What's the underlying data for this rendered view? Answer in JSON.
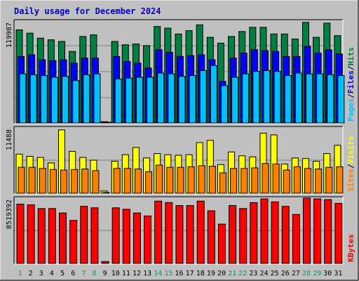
{
  "chart_data": {
    "type": "bar",
    "title": "Daily usage for December 2024",
    "colors": {
      "background": "#c0c0c0",
      "title": "#0000cc",
      "hits": "#008040",
      "files": "#0000ff",
      "pages": "#00c0ff",
      "visits": "#ffff00",
      "sites": "#ff8000",
      "kbytes": "#ff0000",
      "weekend_label": "#00a060",
      "weekday_label": "#000000"
    },
    "categories": [
      "1",
      "2",
      "3",
      "4",
      "5",
      "6",
      "7",
      "8",
      "9",
      "10",
      "11",
      "12",
      "13",
      "14",
      "15",
      "16",
      "17",
      "18",
      "19",
      "20",
      "21",
      "22",
      "23",
      "24",
      "25",
      "26",
      "27",
      "28",
      "29",
      "30",
      "31"
    ],
    "weekend_days": [
      "1",
      "7",
      "8",
      "14",
      "15",
      "21",
      "22",
      "28",
      "29"
    ],
    "panels": [
      {
        "id": "hits-files-pages",
        "max_label": "119987",
        "ylim": [
          0,
          119987
        ],
        "legend": [
          {
            "text": "Pages",
            "color_key": "pages"
          },
          {
            "text": "/",
            "color_key": "weekday_label"
          },
          {
            "text": "Files",
            "color_key": "files"
          },
          {
            "text": "/",
            "color_key": "weekday_label"
          },
          {
            "text": "Hits",
            "color_key": "hits"
          }
        ],
        "series": [
          {
            "name": "Hits",
            "color_key": "hits",
            "values": [
              112000,
              108000,
              102000,
              100000,
              98000,
              86000,
              104000,
              106000,
              1500,
              98000,
              94000,
              95000,
              93000,
              116000,
              114000,
              107000,
              111000,
              118000,
              103000,
              96000,
              104000,
              110000,
              115000,
              115000,
              107000,
              107000,
              101000,
              121000,
              103000,
              120000,
              105000
            ]
          },
          {
            "name": "Files",
            "color_key": "files",
            "values": [
              80000,
              82000,
              76000,
              75000,
              76000,
              72000,
              78000,
              78000,
              1000,
              80000,
              74000,
              72000,
              66000,
              88000,
              85000,
              80000,
              81000,
              82000,
              76000,
              50000,
              78000,
              84000,
              88000,
              87000,
              86000,
              80000,
              80000,
              92000,
              84000,
              88000,
              83000
            ]
          },
          {
            "name": "Pages",
            "color_key": "pages",
            "values": [
              59000,
              58000,
              57000,
              55000,
              56000,
              51000,
              58000,
              59000,
              800,
              53000,
              54000,
              55000,
              55000,
              60000,
              59000,
              56000,
              57000,
              63000,
              69000,
              45000,
              55000,
              59000,
              62000,
              63000,
              62000,
              57000,
              60000,
              59000,
              59000,
              58000,
              57000
            ]
          }
        ]
      },
      {
        "id": "visits-sites",
        "max_label": "11488",
        "ylim": [
          0,
          11488
        ],
        "legend": [
          {
            "text": "Sites",
            "color_key": "sites"
          },
          {
            "text": "/",
            "color_key": "weekday_label"
          },
          {
            "text": "Visits",
            "color_key": "visits"
          }
        ],
        "series": [
          {
            "name": "Visits",
            "color_key": "visits",
            "values": [
              7100,
              6700,
              6500,
              5500,
              11500,
              7600,
              6500,
              6000,
              400,
              5800,
              7000,
              8300,
              6400,
              7200,
              7000,
              6900,
              7000,
              9200,
              9600,
              5200,
              7500,
              6800,
              6600,
              10900,
              10600,
              5300,
              6400,
              6300,
              5800,
              7200,
              8700
            ]
          },
          {
            "name": "Sites",
            "color_key": "sites",
            "values": [
              4700,
              4700,
              4500,
              4300,
              4200,
              4300,
              4400,
              4100,
              100,
              4500,
              4500,
              4400,
              3900,
              5100,
              4700,
              4700,
              4800,
              5000,
              4900,
              3700,
              4500,
              4500,
              4600,
              5400,
              5300,
              4200,
              4800,
              4500,
              4400,
              4700,
              4800
            ]
          }
        ]
      },
      {
        "id": "kbytes",
        "max_label": "8519392",
        "ylim": [
          0,
          8519392
        ],
        "legend": [
          {
            "text": "KBytes",
            "color_key": "kbytes"
          }
        ],
        "series": [
          {
            "name": "KBytes",
            "color_key": "kbytes",
            "values": [
              8000000,
              7900000,
              7400000,
              7400000,
              6800000,
              5800000,
              7700000,
              7500000,
              250000,
              7500000,
              7300000,
              6800000,
              6400000,
              8400000,
              8200000,
              7800000,
              7800000,
              8400000,
              7100000,
              5300000,
              7800000,
              7400000,
              8200000,
              8700000,
              8300000,
              7700000,
              6600000,
              8800000,
              8700000,
              8600000,
              8100000
            ]
          }
        ]
      }
    ]
  }
}
